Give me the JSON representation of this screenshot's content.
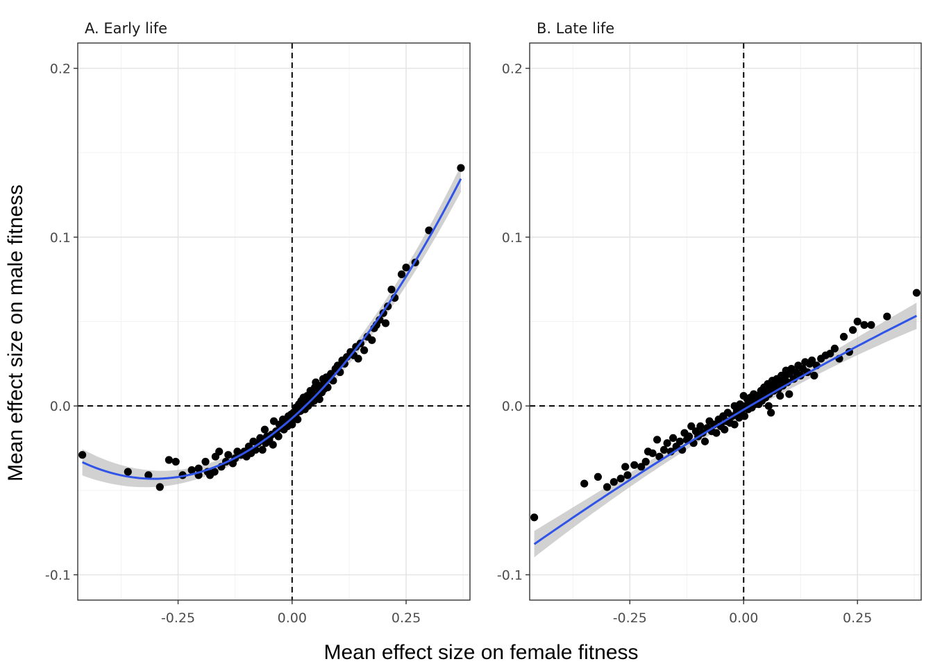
{
  "chart_data": {
    "type": "scatter",
    "xlabel": "Mean effect size on female fitness",
    "ylabel": "Mean effect size on male fitness",
    "xlim": [
      -0.47,
      0.39
    ],
    "ylim": [
      -0.115,
      0.215
    ],
    "x_ticks": [
      {
        "value": -0.25,
        "label": "-0.25"
      },
      {
        "value": 0.0,
        "label": "0.00"
      },
      {
        "value": 0.25,
        "label": "0.25"
      }
    ],
    "y_ticks": [
      {
        "value": -0.1,
        "label": "-0.1"
      },
      {
        "value": 0.0,
        "label": "0.0"
      },
      {
        "value": 0.1,
        "label": "0.1"
      },
      {
        "value": 0.2,
        "label": "0.2"
      }
    ],
    "reference_lines": {
      "x": 0,
      "y": 0,
      "style": "dashed"
    },
    "grid": true,
    "colors": {
      "points": "#000000",
      "fit": "#3054e8",
      "ribbon": "#bdbdbd",
      "grid_major": "#e5e5e5",
      "grid_minor": "#f2f2f2",
      "frame": "#333333"
    },
    "panels": [
      {
        "title": "A. Early life",
        "fit": {
          "method": "quadratic",
          "coefficients": [
            -0.00722,
            0.2377,
            0.3933
          ],
          "x_range": [
            -0.46,
            0.37
          ],
          "se": 0.0015
        },
        "points": [
          [
            -0.46,
            -0.029
          ],
          [
            -0.36,
            -0.039
          ],
          [
            -0.315,
            -0.041
          ],
          [
            -0.29,
            -0.048
          ],
          [
            -0.27,
            -0.032
          ],
          [
            -0.255,
            -0.033
          ],
          [
            -0.24,
            -0.041
          ],
          [
            -0.22,
            -0.038
          ],
          [
            -0.205,
            -0.037
          ],
          [
            -0.205,
            -0.041
          ],
          [
            -0.19,
            -0.033
          ],
          [
            -0.185,
            -0.039
          ],
          [
            -0.18,
            -0.041
          ],
          [
            -0.17,
            -0.039
          ],
          [
            -0.168,
            -0.03
          ],
          [
            -0.16,
            -0.027
          ],
          [
            -0.155,
            -0.036
          ],
          [
            -0.145,
            -0.033
          ],
          [
            -0.14,
            -0.029
          ],
          [
            -0.13,
            -0.034
          ],
          [
            -0.125,
            -0.031
          ],
          [
            -0.12,
            -0.027
          ],
          [
            -0.112,
            -0.029
          ],
          [
            -0.105,
            -0.027
          ],
          [
            -0.1,
            -0.03
          ],
          [
            -0.095,
            -0.024
          ],
          [
            -0.09,
            -0.028
          ],
          [
            -0.085,
            -0.021
          ],
          [
            -0.08,
            -0.026
          ],
          [
            -0.075,
            -0.022
          ],
          [
            -0.07,
            -0.019
          ],
          [
            -0.065,
            -0.026
          ],
          [
            -0.06,
            -0.014
          ],
          [
            -0.058,
            -0.022
          ],
          [
            -0.055,
            -0.018
          ],
          [
            -0.05,
            -0.02
          ],
          [
            -0.045,
            -0.017
          ],
          [
            -0.042,
            -0.023
          ],
          [
            -0.04,
            -0.009
          ],
          [
            -0.035,
            -0.015
          ],
          [
            -0.03,
            -0.018
          ],
          [
            -0.028,
            -0.011
          ],
          [
            -0.025,
            -0.013
          ],
          [
            -0.02,
            -0.008
          ],
          [
            -0.018,
            -0.014
          ],
          [
            -0.015,
            -0.01
          ],
          [
            -0.01,
            -0.012
          ],
          [
            -0.008,
            -0.006
          ],
          [
            -0.005,
            -0.009
          ],
          [
            -0.002,
            -0.005
          ],
          [
            0.0,
            -0.011
          ],
          [
            0.003,
            -0.004
          ],
          [
            0.005,
            -0.007
          ],
          [
            0.008,
            -0.001
          ],
          [
            0.01,
            -0.004
          ],
          [
            0.012,
            -0.008
          ],
          [
            0.015,
            0.001
          ],
          [
            0.018,
            -0.003
          ],
          [
            0.02,
            0.003
          ],
          [
            0.022,
            -0.001
          ],
          [
            0.025,
            0.005
          ],
          [
            0.028,
            -0.002
          ],
          [
            0.03,
            0.002
          ],
          [
            0.033,
            0.006
          ],
          [
            0.035,
            0.0
          ],
          [
            0.038,
            0.004
          ],
          [
            0.04,
            0.009
          ],
          [
            0.042,
            0.002
          ],
          [
            0.045,
            0.007
          ],
          [
            0.048,
            0.003
          ],
          [
            0.05,
            0.011
          ],
          [
            0.052,
            0.014
          ],
          [
            0.055,
            0.006
          ],
          [
            0.058,
            0.01
          ],
          [
            0.06,
            0.004
          ],
          [
            0.063,
            0.012
          ],
          [
            0.065,
            0.008
          ],
          [
            0.068,
            0.016
          ],
          [
            0.07,
            0.01
          ],
          [
            0.072,
            0.013
          ],
          [
            0.075,
            0.017
          ],
          [
            0.078,
            0.011
          ],
          [
            0.08,
            0.016
          ],
          [
            0.085,
            0.019
          ],
          [
            0.09,
            0.015
          ],
          [
            0.095,
            0.022
          ],
          [
            0.1,
            0.024
          ],
          [
            0.105,
            0.02
          ],
          [
            0.11,
            0.027
          ],
          [
            0.115,
            0.025
          ],
          [
            0.12,
            0.029
          ],
          [
            0.128,
            0.032
          ],
          [
            0.135,
            0.03
          ],
          [
            0.14,
            0.035
          ],
          [
            0.145,
            0.028
          ],
          [
            0.15,
            0.037
          ],
          [
            0.158,
            0.033
          ],
          [
            0.165,
            0.041
          ],
          [
            0.175,
            0.039
          ],
          [
            0.18,
            0.046
          ],
          [
            0.185,
            0.048
          ],
          [
            0.192,
            0.051
          ],
          [
            0.2,
            0.055
          ],
          [
            0.205,
            0.049
          ],
          [
            0.21,
            0.059
          ],
          [
            0.218,
            0.069
          ],
          [
            0.225,
            0.064
          ],
          [
            0.24,
            0.078
          ],
          [
            0.25,
            0.082
          ],
          [
            0.27,
            0.085
          ],
          [
            0.3,
            0.104
          ],
          [
            0.37,
            0.141
          ]
        ]
      },
      {
        "title": "B. Late life",
        "fit": {
          "method": "quadratic",
          "coefficients": [
            -0.0022,
            0.1585,
            -0.032
          ],
          "x_range": [
            -0.46,
            0.38
          ],
          "se": 0.0015
        },
        "points": [
          [
            -0.46,
            -0.066
          ],
          [
            -0.35,
            -0.046
          ],
          [
            -0.32,
            -0.042
          ],
          [
            -0.3,
            -0.048
          ],
          [
            -0.285,
            -0.045
          ],
          [
            -0.27,
            -0.043
          ],
          [
            -0.26,
            -0.036
          ],
          [
            -0.255,
            -0.041
          ],
          [
            -0.24,
            -0.035
          ],
          [
            -0.225,
            -0.036
          ],
          [
            -0.215,
            -0.033
          ],
          [
            -0.21,
            -0.027
          ],
          [
            -0.2,
            -0.028
          ],
          [
            -0.19,
            -0.02
          ],
          [
            -0.185,
            -0.03
          ],
          [
            -0.175,
            -0.026
          ],
          [
            -0.168,
            -0.022
          ],
          [
            -0.16,
            -0.027
          ],
          [
            -0.155,
            -0.019
          ],
          [
            -0.148,
            -0.024
          ],
          [
            -0.14,
            -0.021
          ],
          [
            -0.135,
            -0.026
          ],
          [
            -0.13,
            -0.016
          ],
          [
            -0.125,
            -0.02
          ],
          [
            -0.12,
            -0.018
          ],
          [
            -0.115,
            -0.012
          ],
          [
            -0.11,
            -0.022
          ],
          [
            -0.105,
            -0.015
          ],
          [
            -0.1,
            -0.018
          ],
          [
            -0.095,
            -0.012
          ],
          [
            -0.09,
            -0.016
          ],
          [
            -0.085,
            -0.021
          ],
          [
            -0.08,
            -0.013
          ],
          [
            -0.075,
            -0.009
          ],
          [
            -0.07,
            -0.015
          ],
          [
            -0.065,
            -0.011
          ],
          [
            -0.06,
            -0.016
          ],
          [
            -0.055,
            -0.008
          ],
          [
            -0.05,
            -0.012
          ],
          [
            -0.045,
            -0.006
          ],
          [
            -0.042,
            -0.014
          ],
          [
            -0.038,
            -0.009
          ],
          [
            -0.035,
            -0.004
          ],
          [
            -0.03,
            -0.01
          ],
          [
            -0.025,
            -0.006
          ],
          [
            -0.02,
            -0.011
          ],
          [
            -0.015,
            -0.003
          ],
          [
            -0.01,
            -0.007
          ],
          [
            -0.008,
            0.001
          ],
          [
            -0.005,
            -0.004
          ],
          [
            -0.002,
            -0.001
          ],
          [
            0.0,
            0.006
          ],
          [
            0.002,
            -0.006
          ],
          [
            0.005,
            0.0
          ],
          [
            0.008,
            0.004
          ],
          [
            0.01,
            -0.002
          ],
          [
            0.012,
            0.002
          ],
          [
            0.015,
            0.005
          ],
          [
            0.018,
            -0.001
          ],
          [
            0.02,
            0.003
          ],
          [
            0.022,
            0.007
          ],
          [
            0.025,
            0.001
          ],
          [
            0.028,
            0.004
          ],
          [
            0.03,
            0.006
          ],
          [
            0.033,
            0.001
          ],
          [
            0.035,
            0.005
          ],
          [
            0.038,
            0.009
          ],
          [
            0.04,
            0.003
          ],
          [
            0.043,
            0.007
          ],
          [
            0.045,
            0.011
          ],
          [
            0.048,
            0.005
          ],
          [
            0.05,
            0.009
          ],
          [
            0.053,
            0.013
          ],
          [
            0.056,
            0.007
          ],
          [
            0.06,
            0.011
          ],
          [
            0.063,
            0.015
          ],
          [
            0.066,
            0.009
          ],
          [
            0.07,
            0.012
          ],
          [
            0.073,
            0.016
          ],
          [
            0.076,
            0.01
          ],
          [
            0.08,
            0.014
          ],
          [
            0.083,
            0.018
          ],
          [
            0.086,
            0.012
          ],
          [
            0.09,
            0.017
          ],
          [
            0.093,
            0.021
          ],
          [
            0.096,
            0.014
          ],
          [
            0.1,
            0.019
          ],
          [
            0.105,
            0.022
          ],
          [
            0.11,
            0.016
          ],
          [
            0.115,
            0.02
          ],
          [
            0.12,
            0.024
          ],
          [
            0.125,
            0.018
          ],
          [
            0.13,
            0.022
          ],
          [
            0.135,
            0.026
          ],
          [
            0.14,
            0.02
          ],
          [
            0.145,
            0.025
          ],
          [
            0.15,
            0.027
          ],
          [
            0.155,
            0.018
          ],
          [
            0.16,
            0.024
          ],
          [
            0.17,
            0.028
          ],
          [
            0.18,
            0.03
          ],
          [
            0.19,
            0.031
          ],
          [
            0.2,
            0.034
          ],
          [
            0.21,
            0.028
          ],
          [
            0.22,
            0.041
          ],
          [
            0.232,
            0.032
          ],
          [
            0.24,
            0.045
          ],
          [
            0.25,
            0.05
          ],
          [
            0.265,
            0.048
          ],
          [
            0.28,
            0.048
          ],
          [
            0.315,
            0.053
          ],
          [
            0.38,
            0.067
          ],
          [
            0.1,
            0.007
          ],
          [
            0.08,
            0.006
          ],
          [
            -0.02,
            0.0
          ],
          [
            0.055,
            0.0
          ],
          [
            0.06,
            -0.004
          ]
        ]
      }
    ]
  }
}
